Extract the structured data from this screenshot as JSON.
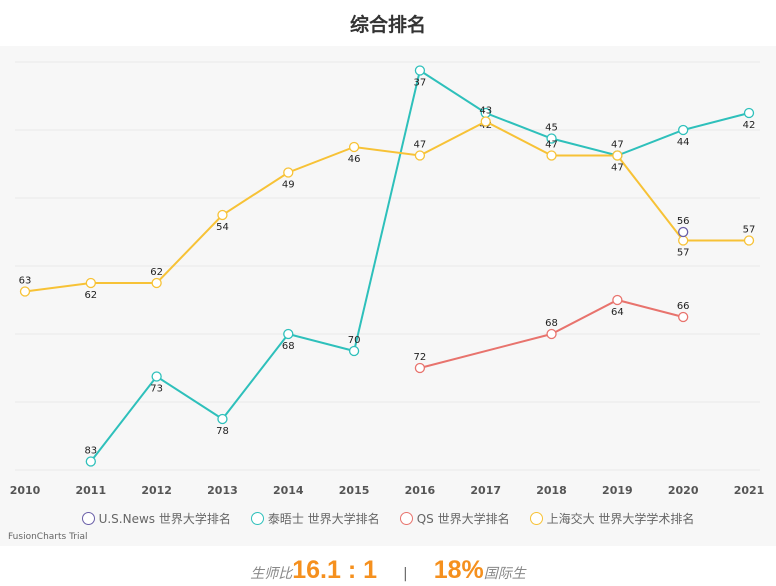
{
  "chart_data": {
    "type": "line",
    "title": "综合排名",
    "categories": [
      "2010",
      "2011",
      "2012",
      "2013",
      "2014",
      "2015",
      "2016",
      "2017",
      "2018",
      "2019",
      "2020",
      "2021"
    ],
    "ylim": [
      36,
      84
    ],
    "y_inverted": true,
    "grid": true,
    "legend_position": "bottom",
    "series": [
      {
        "name": "U.S.News 世界大学排名",
        "color": "#6a5fa8",
        "values": [
          null,
          null,
          null,
          null,
          null,
          null,
          null,
          null,
          null,
          null,
          56,
          null
        ]
      },
      {
        "name": "泰晤士 世界大学排名",
        "color": "#2ec0bb",
        "values": [
          null,
          83,
          73,
          78,
          68,
          70,
          37,
          42,
          45,
          47,
          44,
          42
        ]
      },
      {
        "name": "QS 世界大学排名",
        "color": "#e8736d",
        "values": [
          null,
          null,
          null,
          null,
          null,
          null,
          72,
          null,
          68,
          64,
          66,
          null
        ]
      },
      {
        "name": "上海交大 世界大学学术排名",
        "color": "#f7c236",
        "values": [
          63,
          62,
          62,
          54,
          49,
          46,
          47,
          43,
          47,
          47,
          57,
          57
        ]
      }
    ]
  },
  "watermark": "FusionCharts Trial",
  "stats": {
    "ratio_label": "生师比",
    "ratio_value": "16.1 : 1",
    "separator": "|",
    "intl_value": "18%",
    "intl_label": "国际生"
  }
}
